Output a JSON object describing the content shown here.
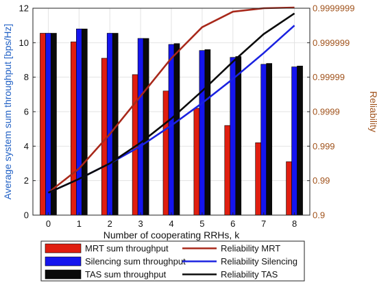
{
  "chart_data": {
    "type": "bar",
    "categories": [
      "0",
      "1",
      "2",
      "3",
      "4",
      "5",
      "6",
      "7",
      "8"
    ],
    "xlabel": "Number of cooperating RRHs, k",
    "ylabel": "Average system sum throughput [bps/Hz]",
    "ylabel_right": "Reliability",
    "ylim": [
      0,
      12
    ],
    "yticks": [
      "0",
      "2",
      "4",
      "6",
      "8",
      "10",
      "12"
    ],
    "yticks_right": [
      "0.9",
      "0.99",
      "0.999",
      "0.9999",
      "0.99999",
      "0.999999",
      "0.9999999"
    ],
    "right_axis_scale": "-log10(1 - reliability), 0.9 to 0.9999999",
    "ylim_right_nines": [
      1,
      7
    ],
    "grid": true,
    "bar_series": [
      {
        "name": "MRT sum throughput",
        "color": "#e01e10",
        "values": [
          10.55,
          10.05,
          9.1,
          8.15,
          7.2,
          6.2,
          5.2,
          4.2,
          3.1
        ]
      },
      {
        "name": "Silencing sum throughput",
        "color": "#1515ee",
        "values": [
          10.55,
          10.8,
          10.55,
          10.25,
          9.9,
          9.55,
          9.15,
          8.75,
          8.6
        ]
      },
      {
        "name": "TAS sum throughput",
        "color": "#0a0a0a",
        "values": [
          10.55,
          10.8,
          10.55,
          10.25,
          9.95,
          9.6,
          9.2,
          8.8,
          8.65
        ]
      }
    ],
    "line_series": [
      {
        "name": "Reliability MRT",
        "color": "#a8281a",
        "nines": [
          1.65,
          2.35,
          3.35,
          4.45,
          5.55,
          6.45,
          6.9,
          7.0,
          7.02
        ]
      },
      {
        "name": "Reliability Silencing",
        "color": "#1a22e0",
        "nines": [
          1.65,
          2.05,
          2.5,
          3.0,
          3.6,
          4.25,
          4.95,
          5.7,
          6.5
        ]
      },
      {
        "name": "Reliability TAS",
        "color": "#0a0a0a",
        "nines": [
          1.65,
          2.05,
          2.5,
          3.1,
          3.8,
          4.6,
          5.45,
          6.25,
          6.85
        ]
      }
    ],
    "legend_placement": "bottom"
  }
}
